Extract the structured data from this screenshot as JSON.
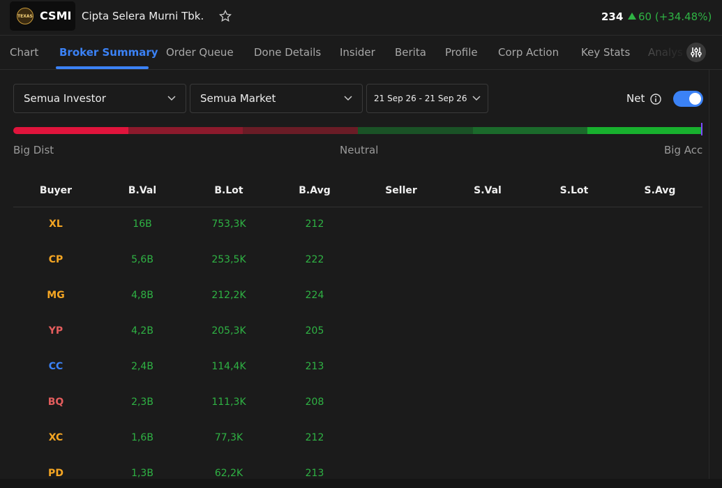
{
  "header": {
    "ticker": "CSMI",
    "logo_text": "TEXAS",
    "company": "Cipta Selera Murni Tbk.",
    "price": "234",
    "change": "60 (+34.48%)"
  },
  "tabs": [
    "Chart",
    "Broker Summary",
    "Order Queue",
    "Done Details",
    "Insider",
    "Berita",
    "Profile",
    "Corp Action",
    "Key Stats",
    "Analys"
  ],
  "active_tab": 1,
  "filters": {
    "investor": "Semua Investor",
    "market": "Semua Market",
    "date": "21 Sep 26 - 21 Sep 26",
    "net_label": "Net"
  },
  "scale": {
    "left": "Big Dist",
    "middle": "Neutral",
    "right": "Big Acc"
  },
  "table": {
    "columns": [
      "Buyer",
      "B.Val",
      "B.Lot",
      "B.Avg",
      "Seller",
      "S.Val",
      "S.Lot",
      "S.Avg"
    ],
    "rows": [
      {
        "broker": "XL",
        "color": "#f5a623",
        "cells": [
          "16B",
          "753,3K",
          "212"
        ]
      },
      {
        "broker": "CP",
        "color": "#f5a623",
        "cells": [
          "5,6B",
          "253,5K",
          "222"
        ]
      },
      {
        "broker": "MG",
        "color": "#f5a623",
        "cells": [
          "4,8B",
          "212,2K",
          "224"
        ]
      },
      {
        "broker": "YP",
        "color": "#e35d5d",
        "cells": [
          "4,2B",
          "205,3K",
          "205"
        ]
      },
      {
        "broker": "CC",
        "color": "#3b82f6",
        "cells": [
          "2,4B",
          "114,4K",
          "213"
        ]
      },
      {
        "broker": "BQ",
        "color": "#e35d5d",
        "cells": [
          "2,3B",
          "111,3K",
          "208"
        ]
      },
      {
        "broker": "XC",
        "color": "#f5a623",
        "cells": [
          "1,6B",
          "77,3K",
          "212"
        ]
      },
      {
        "broker": "PD",
        "color": "#f5a623",
        "cells": [
          "1,3B",
          "62,2K",
          "213"
        ]
      }
    ]
  }
}
